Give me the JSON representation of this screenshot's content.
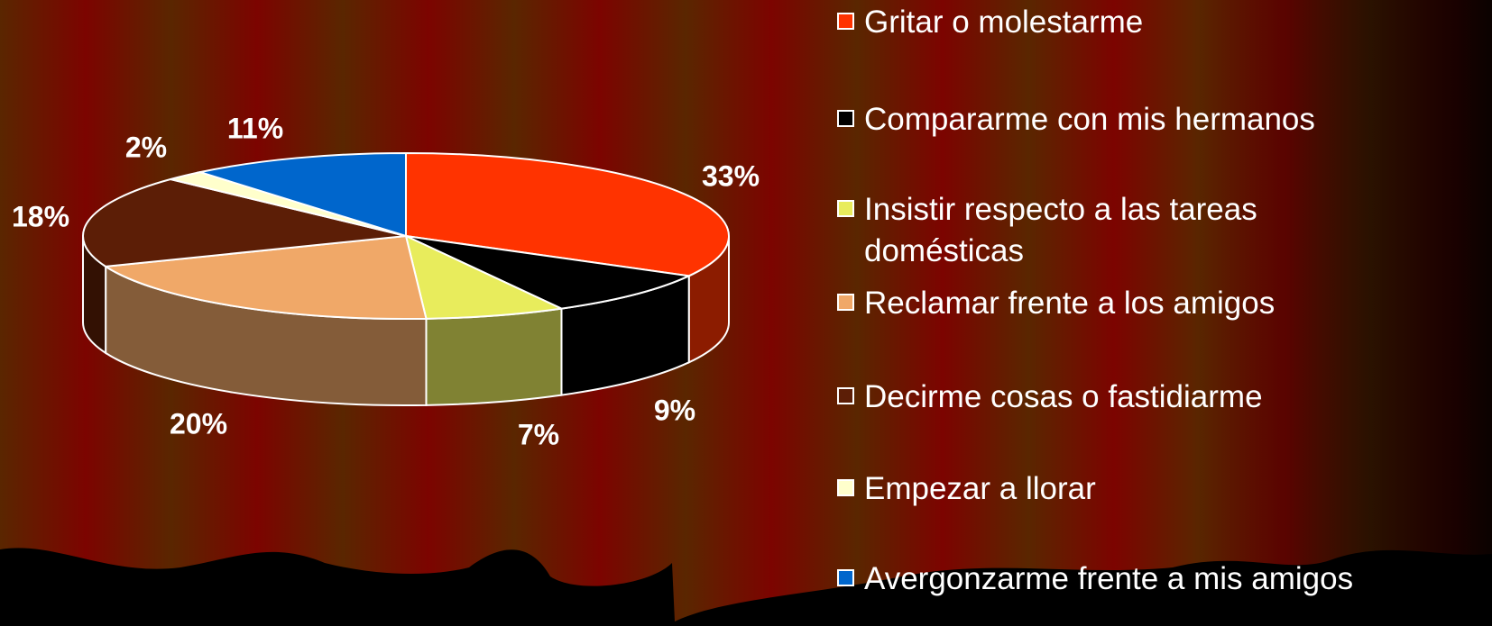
{
  "chart_data": {
    "type": "pie",
    "categories": [
      "Gritar o molestarme",
      "Compararme con mis hermanos",
      "Insistir respecto a las tareas domésticas",
      "Reclamar frente a los amigos",
      "Decirme cosas o fastidiarme",
      "Empezar a llorar",
      "Avergonzarme frente a mis amigos"
    ],
    "values": [
      33,
      9,
      7,
      20,
      18,
      2,
      11
    ],
    "value_labels": [
      "33%",
      "9%",
      "7%",
      "20%",
      "18%",
      "2%",
      "11%"
    ],
    "colors": [
      "#ff3300",
      "#000000",
      "#e8ec5c",
      "#f0a868",
      "#5c1e06",
      "#ffffcc",
      "#0066cc"
    ]
  }
}
